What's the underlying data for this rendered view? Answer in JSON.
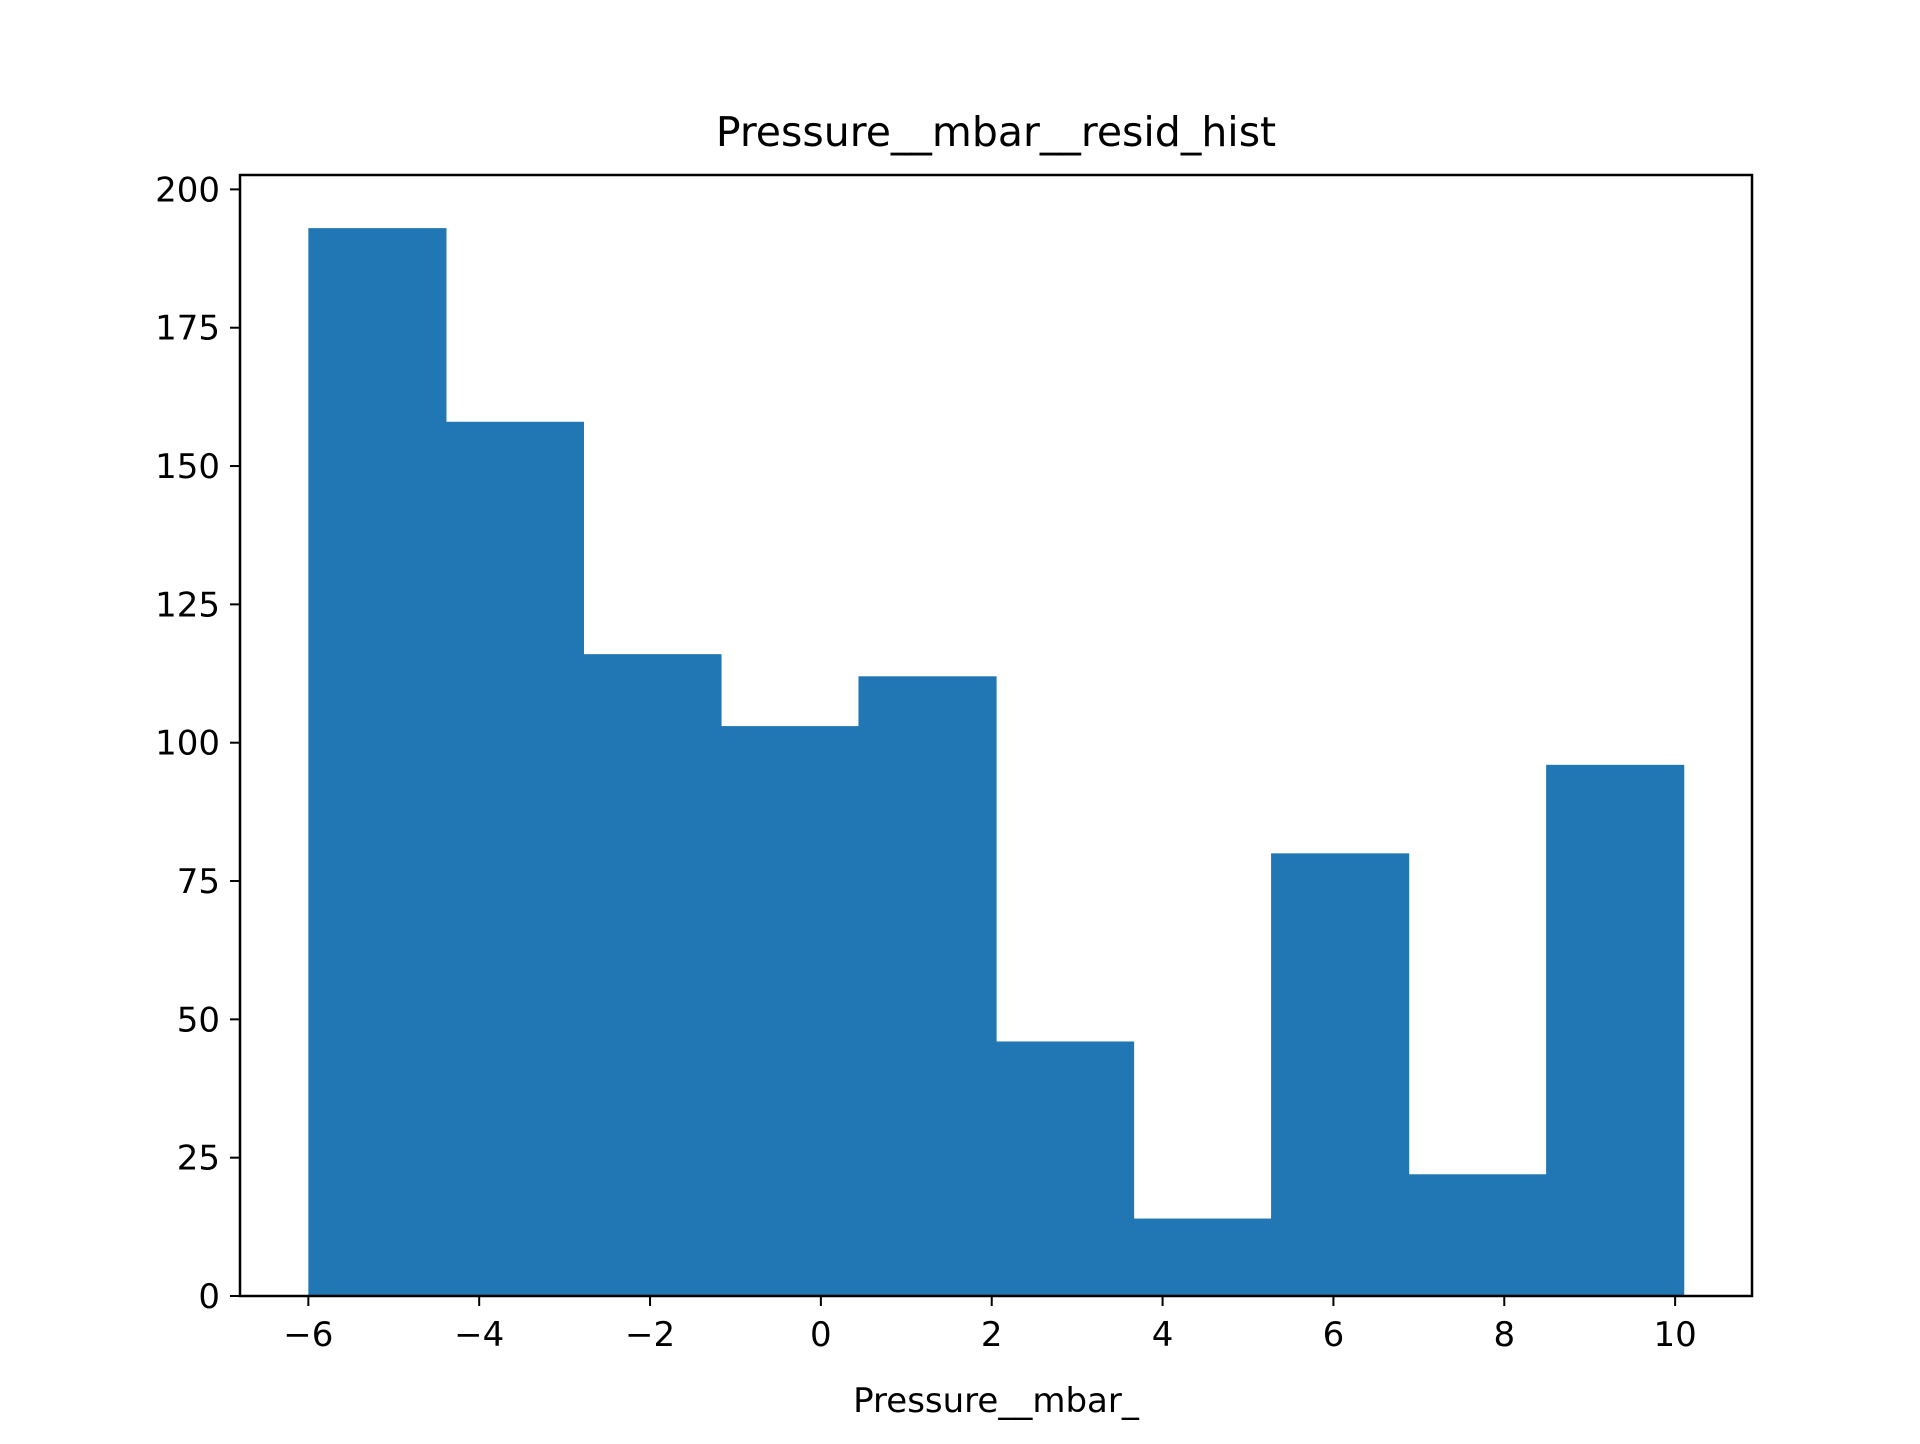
{
  "chart_data": {
    "type": "bar",
    "title": "Pressure__mbar__resid_hist",
    "xlabel": "Pressure__mbar_",
    "ylabel": "",
    "bin_edges": [
      -6.0,
      -4.39,
      -2.78,
      -1.17,
      0.44,
      2.05,
      3.66,
      5.27,
      6.88,
      8.49,
      10.1
    ],
    "values": [
      193,
      158,
      116,
      103,
      112,
      46,
      14,
      80,
      22,
      96
    ],
    "xlim": [
      -6.8,
      10.9
    ],
    "ylim": [
      0,
      202.6
    ],
    "xticks": [
      -6,
      -4,
      -2,
      0,
      2,
      4,
      6,
      8,
      10
    ],
    "xtick_labels": [
      "−6",
      "−4",
      "−2",
      "0",
      "2",
      "4",
      "6",
      "8",
      "10"
    ],
    "yticks": [
      0,
      25,
      50,
      75,
      100,
      125,
      150,
      175,
      200
    ],
    "ytick_labels": [
      "0",
      "25",
      "50",
      "75",
      "100",
      "125",
      "150",
      "175",
      "200"
    ],
    "grid": false,
    "legend": "none",
    "bar_color": "#2077b4"
  }
}
